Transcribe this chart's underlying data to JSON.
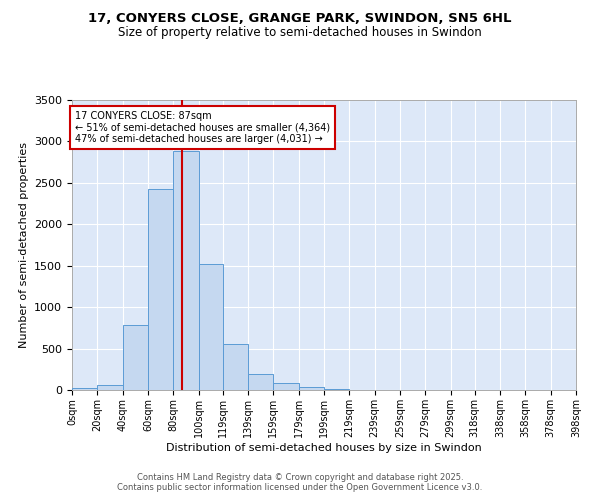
{
  "title1": "17, CONYERS CLOSE, GRANGE PARK, SWINDON, SN5 6HL",
  "title2": "Size of property relative to semi-detached houses in Swindon",
  "xlabel": "Distribution of semi-detached houses by size in Swindon",
  "ylabel": "Number of semi-detached properties",
  "property_size": 87,
  "annotation_title": "17 CONYERS CLOSE: 87sqm",
  "annotation_line1": "← 51% of semi-detached houses are smaller (4,364)",
  "annotation_line2": "47% of semi-detached houses are larger (4,031) →",
  "footnote1": "Contains HM Land Registry data © Crown copyright and database right 2025.",
  "footnote2": "Contains public sector information licensed under the Open Government Licence v3.0.",
  "bar_color": "#c5d8f0",
  "bar_edge_color": "#5b9bd5",
  "vline_color": "#cc0000",
  "annotation_box_color": "#cc0000",
  "background_color": "#dde8f8",
  "grid_color": "#ffffff",
  "bins": [
    0,
    20,
    40,
    60,
    80,
    100,
    119,
    139,
    159,
    179,
    199,
    219,
    239,
    259,
    279,
    299,
    318,
    338,
    358,
    378,
    398
  ],
  "bin_labels": [
    "0sqm",
    "20sqm",
    "40sqm",
    "60sqm",
    "80sqm",
    "100sqm",
    "119sqm",
    "139sqm",
    "159sqm",
    "179sqm",
    "199sqm",
    "219sqm",
    "239sqm",
    "259sqm",
    "279sqm",
    "299sqm",
    "318sqm",
    "338sqm",
    "358sqm",
    "378sqm",
    "398sqm"
  ],
  "counts": [
    20,
    60,
    780,
    2430,
    2880,
    1520,
    555,
    195,
    90,
    35,
    10,
    5,
    0,
    0,
    0,
    0,
    0,
    0,
    0,
    0
  ],
  "ylim": [
    0,
    3500
  ],
  "yticks": [
    0,
    500,
    1000,
    1500,
    2000,
    2500,
    3000,
    3500
  ]
}
